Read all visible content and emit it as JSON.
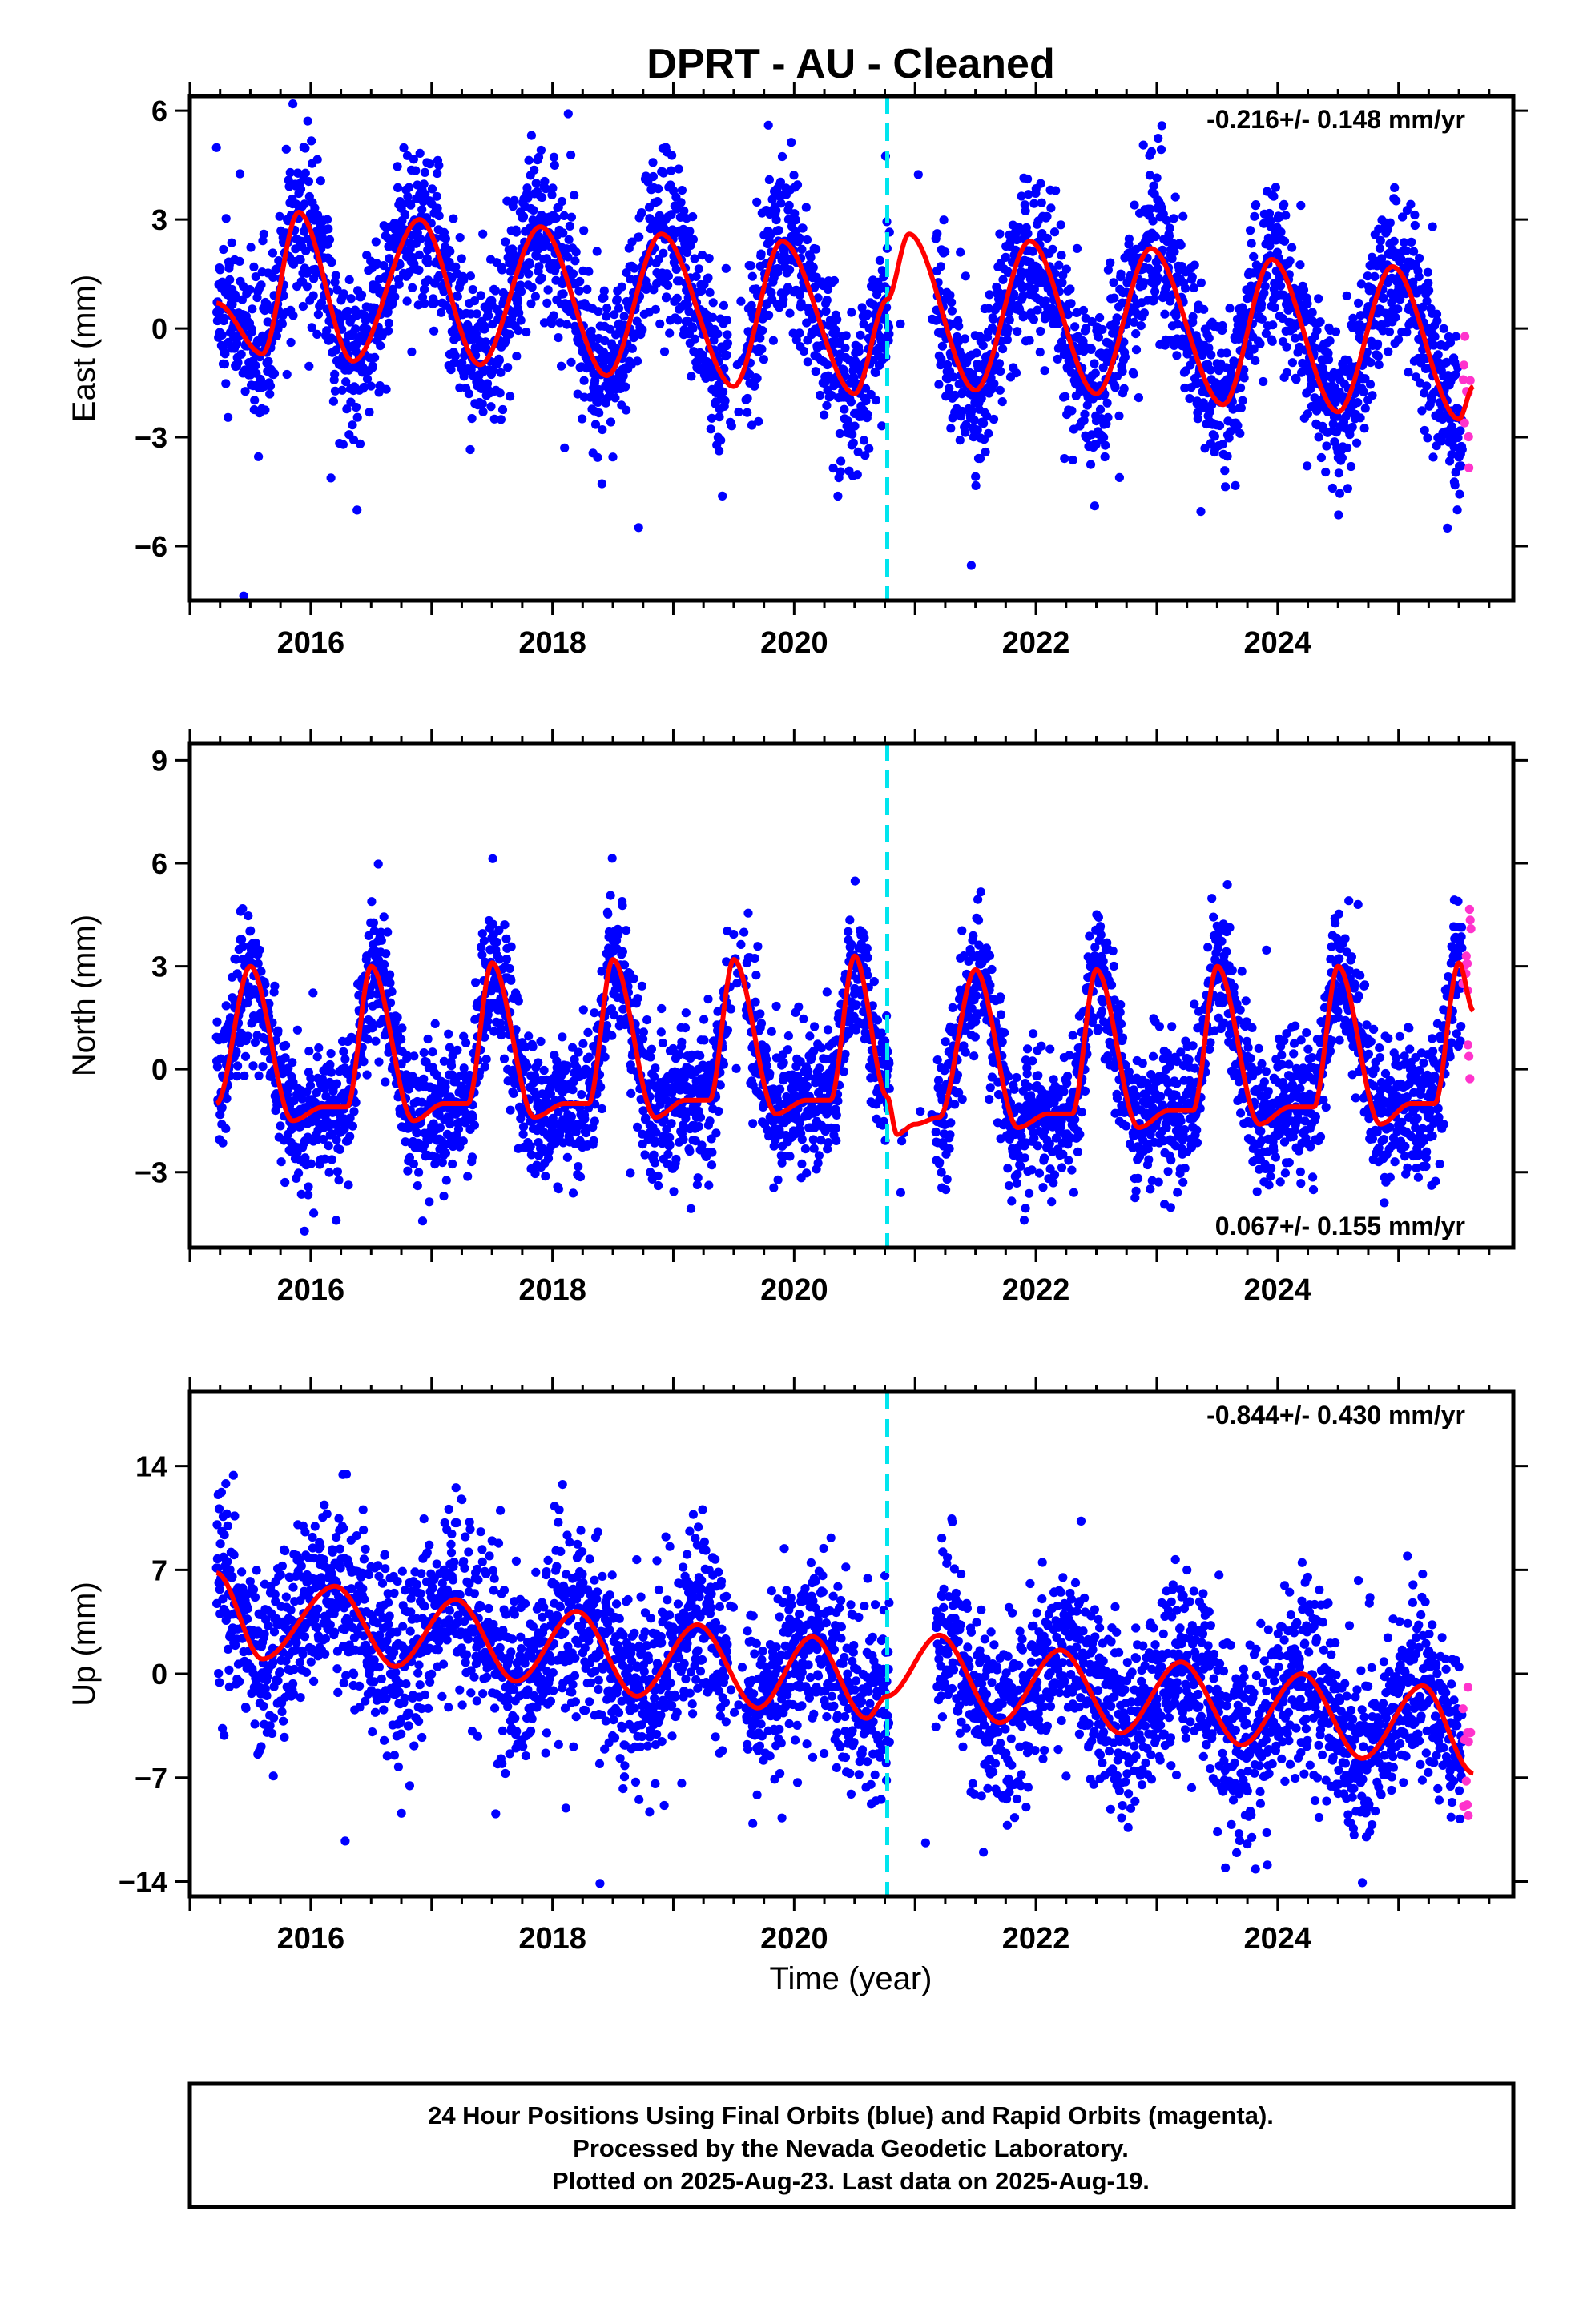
{
  "title": "DPRT  - AU - Cleaned",
  "xlabel": "Time (year)",
  "footer": {
    "line1": "24 Hour Positions Using Final Orbits (blue) and Rapid Orbits (magenta).",
    "line2": "Processed by the Nevada Geodetic Laboratory.",
    "line3": "Plotted on 2025-Aug-23. Last data on 2025-Aug-19."
  },
  "colors": {
    "final_points": "#0000ff",
    "rapid_points": "#ff33cc",
    "model_line": "#ff0000",
    "offset_line": "#00e5ee"
  },
  "chart_data": [
    {
      "type": "scatter",
      "panel": "east",
      "ylabel": "East (mm)",
      "rate_label": "-0.216+/- 0.148 mm/yr",
      "rate_position": "top-right",
      "xlim": [
        2015.0,
        2025.95
      ],
      "ylim": [
        -7.5,
        6.4
      ],
      "xticks": [
        2016,
        2018,
        2020,
        2022,
        2024
      ],
      "yticks": [
        6,
        3,
        0,
        -3,
        -6
      ],
      "ytick_labels": [
        "6",
        "3",
        "0",
        "−3",
        "−6"
      ],
      "offset_epoch": 2020.77,
      "data_start": 2015.22,
      "data_end": 2025.6,
      "rapid_start": 2025.53,
      "seasonal_amplitude": 2.1,
      "seasonal_peak_month": 11,
      "scatter_sigma": 1.1,
      "model_curve": {
        "x": [
          2015.22,
          2015.6,
          2015.9,
          2016.35,
          2016.9,
          2017.4,
          2017.9,
          2018.45,
          2018.9,
          2019.5,
          2019.9,
          2020.5,
          2020.77,
          2020.95,
          2021.5,
          2021.95,
          2022.5,
          2022.95,
          2023.55,
          2023.95,
          2024.5,
          2024.95,
          2025.5,
          2025.62
        ],
        "y": [
          0.7,
          -0.7,
          3.2,
          -0.9,
          3.0,
          -1.0,
          2.8,
          -1.3,
          2.6,
          -1.6,
          2.4,
          -1.8,
          0.8,
          2.6,
          -1.7,
          2.4,
          -1.8,
          2.2,
          -2.1,
          1.9,
          -2.3,
          1.7,
          -2.5,
          -1.6
        ]
      }
    },
    {
      "type": "scatter",
      "panel": "north",
      "ylabel": "North (mm)",
      "rate_label": "0.067+/- 0.155 mm/yr",
      "rate_position": "bottom-right",
      "xlim": [
        2015.0,
        2025.95
      ],
      "ylim": [
        -5.2,
        9.5
      ],
      "xticks": [
        2016,
        2018,
        2020,
        2022,
        2024
      ],
      "yticks": [
        9,
        6,
        3,
        0,
        -3
      ],
      "ytick_labels": [
        "9",
        "6",
        "3",
        "0",
        "−3"
      ],
      "offset_epoch": 2020.77,
      "data_start": 2015.22,
      "data_end": 2025.6,
      "rapid_start": 2025.53,
      "seasonal_amplitude": 2.2,
      "seasonal_peak_month": 6,
      "scatter_sigma": 1.0,
      "model_curve": {
        "x": [
          2015.22,
          2015.5,
          2015.85,
          2016.1,
          2016.3,
          2016.5,
          2016.85,
          2017.1,
          2017.3,
          2017.5,
          2017.85,
          2018.1,
          2018.3,
          2018.5,
          2018.85,
          2019.1,
          2019.3,
          2019.5,
          2019.85,
          2020.1,
          2020.3,
          2020.5,
          2020.77,
          2020.85,
          2021.0,
          2021.2,
          2021.5,
          2021.85,
          2022.1,
          2022.3,
          2022.5,
          2022.85,
          2023.1,
          2023.3,
          2023.5,
          2023.85,
          2024.1,
          2024.3,
          2024.5,
          2024.85,
          2025.1,
          2025.3,
          2025.5,
          2025.62
        ],
        "y": [
          -1.0,
          3.0,
          -1.5,
          -1.1,
          -1.1,
          3.0,
          -1.5,
          -1.0,
          -1.0,
          3.1,
          -1.4,
          -1.0,
          -1.0,
          3.2,
          -1.4,
          -0.9,
          -0.9,
          3.2,
          -1.3,
          -0.9,
          -0.9,
          3.3,
          -0.8,
          -1.9,
          -1.6,
          -1.4,
          2.9,
          -1.7,
          -1.3,
          -1.3,
          2.9,
          -1.7,
          -1.2,
          -1.2,
          3.0,
          -1.6,
          -1.1,
          -1.1,
          3.0,
          -1.6,
          -1.0,
          -1.0,
          3.1,
          1.7
        ]
      }
    },
    {
      "type": "scatter",
      "panel": "up",
      "ylabel": "Up (mm)",
      "rate_label": "-0.844+/- 0.430 mm/yr",
      "rate_position": "top-right",
      "xlim": [
        2015.0,
        2025.95
      ],
      "ylim": [
        -15,
        19
      ],
      "xticks": [
        2016,
        2018,
        2020,
        2022,
        2024
      ],
      "yticks": [
        14,
        7,
        0,
        -7,
        -14
      ],
      "ytick_labels": [
        "14",
        "7",
        "0",
        "−7",
        "−14"
      ],
      "offset_epoch": 2020.77,
      "data_start": 2015.22,
      "data_end": 2025.6,
      "rapid_start": 2025.53,
      "seasonal_amplitude": 2.8,
      "seasonal_peak_month": 3,
      "scatter_sigma": 3.0,
      "model_curve": {
        "x": [
          2015.22,
          2015.6,
          2016.2,
          2016.7,
          2017.2,
          2017.7,
          2018.2,
          2018.7,
          2019.2,
          2019.7,
          2020.15,
          2020.6,
          2020.77,
          2021.2,
          2021.7,
          2022.2,
          2022.7,
          2023.2,
          2023.7,
          2024.2,
          2024.7,
          2025.2,
          2025.62
        ],
        "y": [
          6.8,
          1.0,
          5.9,
          0.5,
          5.0,
          -0.5,
          4.2,
          -1.5,
          3.3,
          -2.3,
          2.5,
          -3.0,
          -1.5,
          2.6,
          -3.3,
          1.6,
          -4.0,
          0.8,
          -4.8,
          0.0,
          -5.7,
          -0.8,
          -6.7
        ]
      }
    }
  ]
}
